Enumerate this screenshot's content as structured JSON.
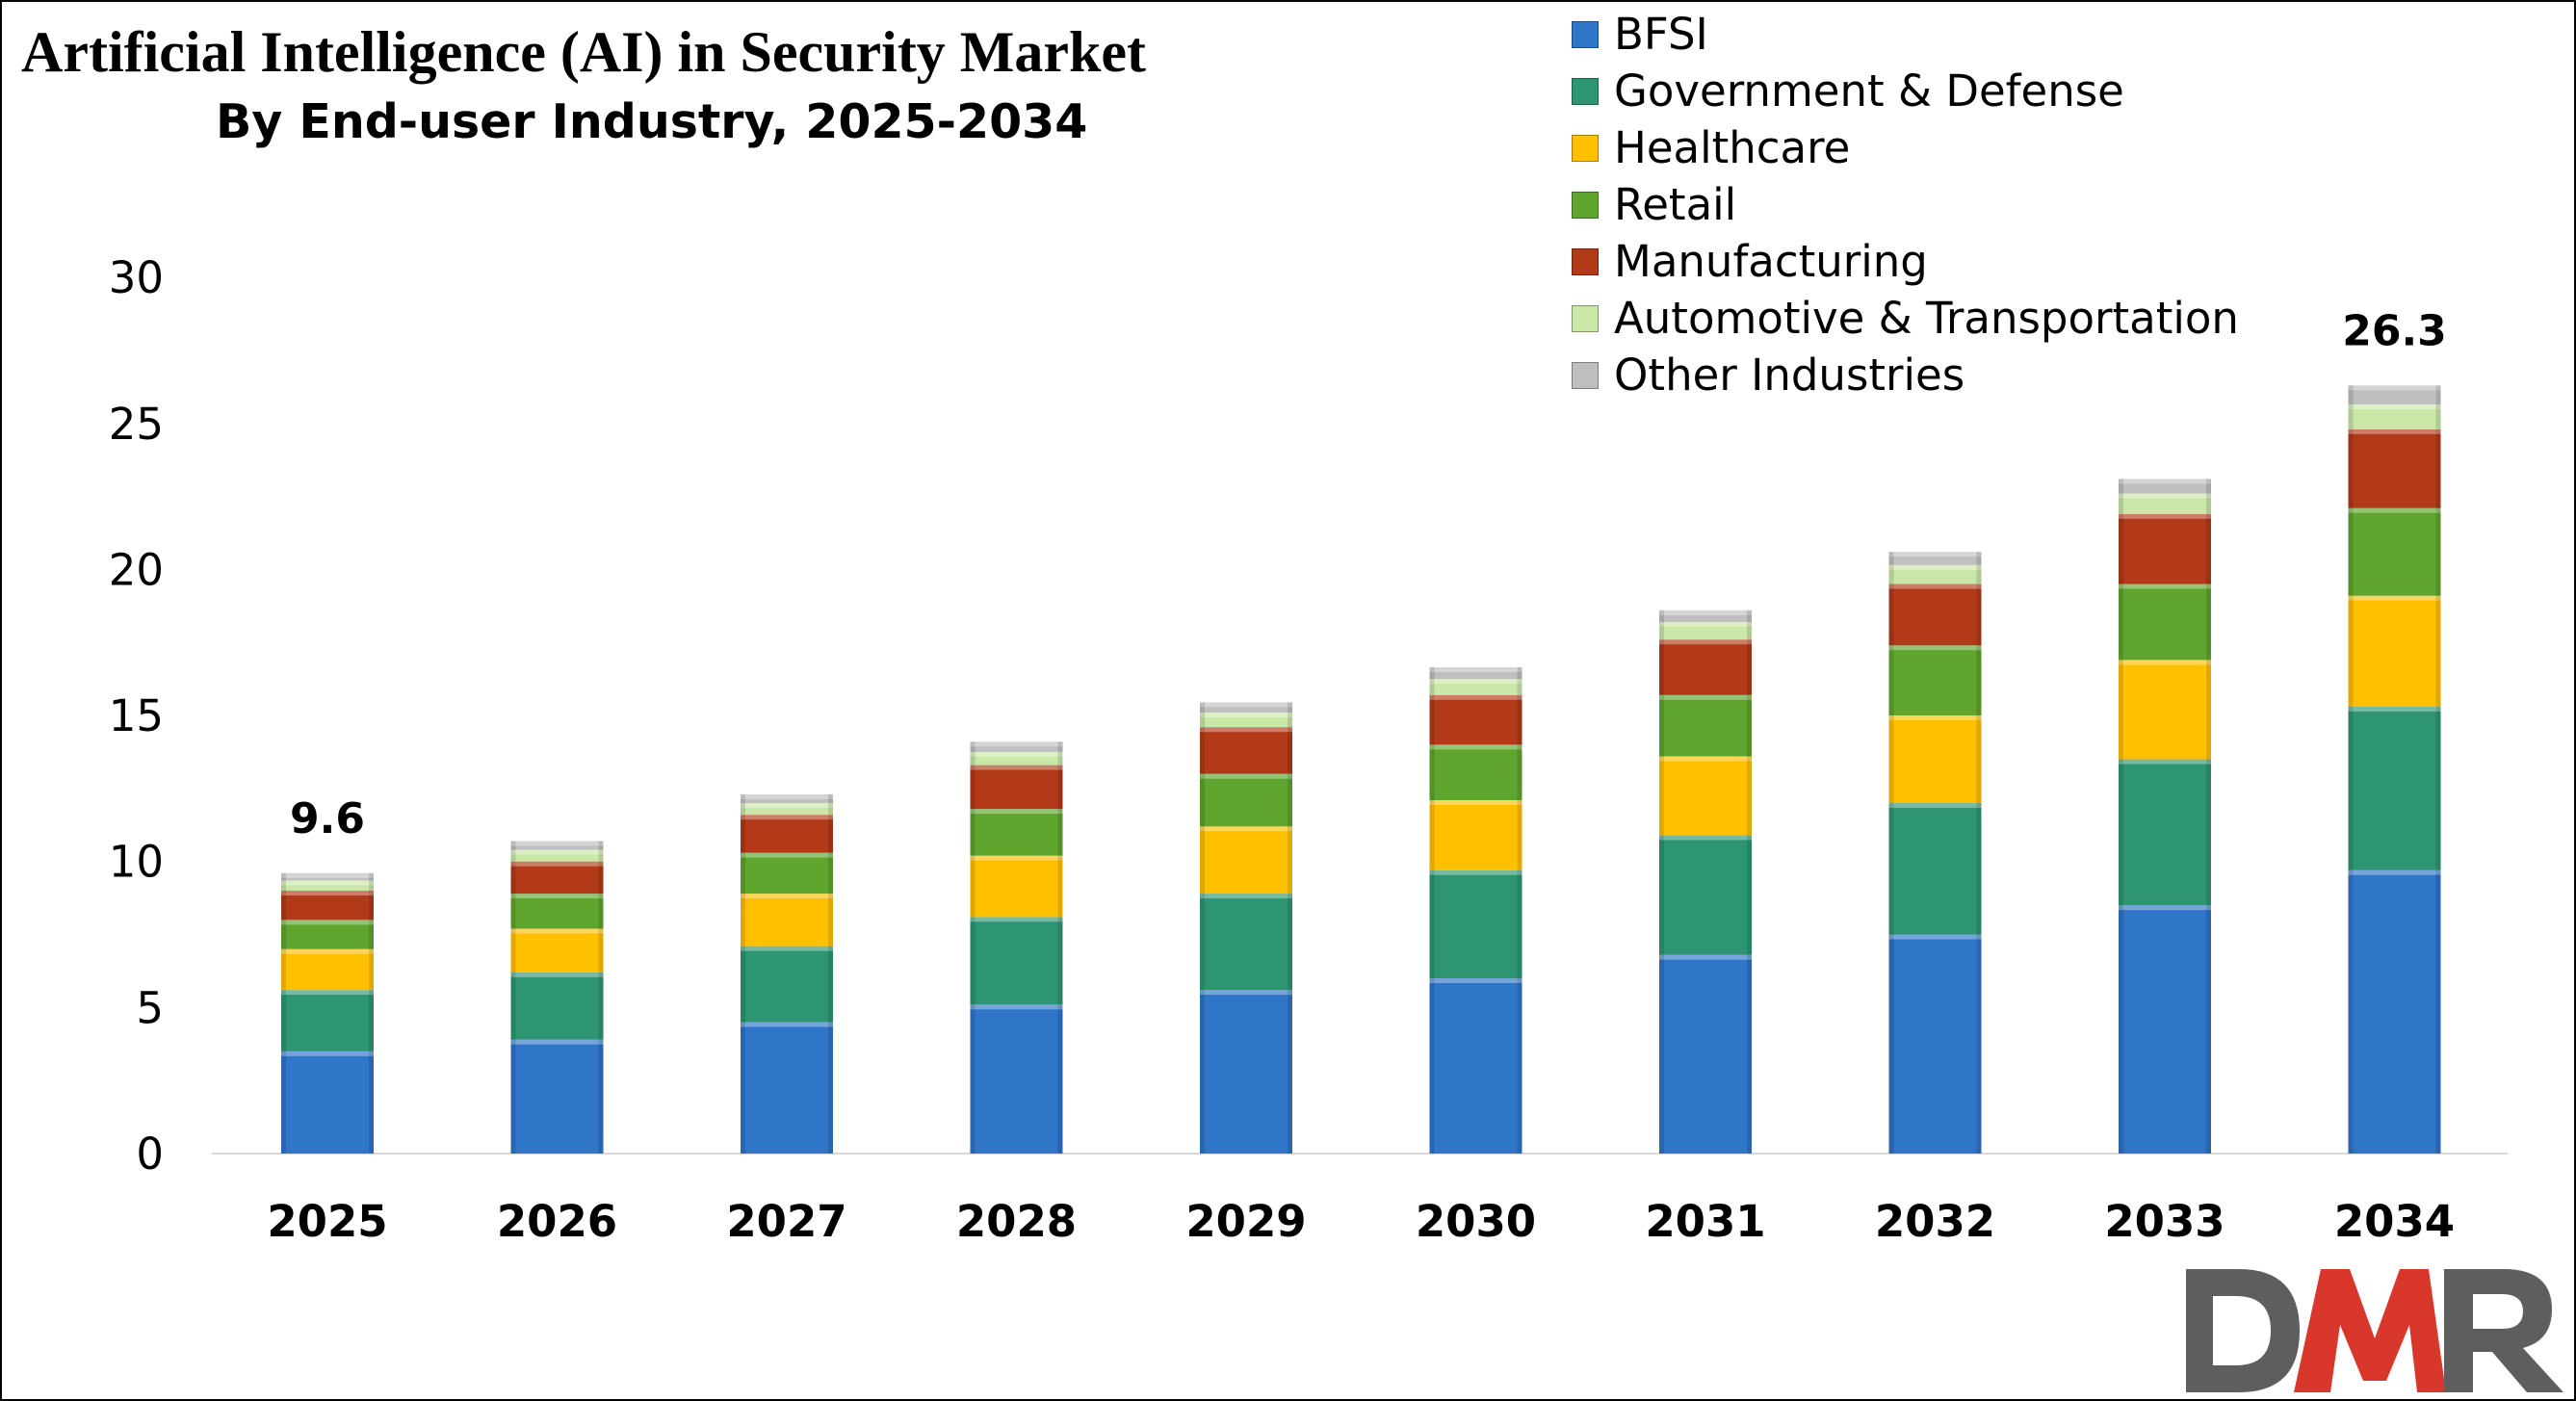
{
  "chart_data": {
    "type": "bar",
    "stacked": true,
    "title": "Artificial Intelligence (AI) in Security Market",
    "subtitle": "By End-user Industry, 2025-2034",
    "xlabel": "",
    "ylabel": "",
    "ylim": [
      0,
      30
    ],
    "yticks": [
      0,
      5,
      10,
      15,
      20,
      25,
      30
    ],
    "grid": false,
    "legend_position": "top-right",
    "categories": [
      "2025",
      "2026",
      "2027",
      "2028",
      "2029",
      "2030",
      "2031",
      "2032",
      "2033",
      "2034"
    ],
    "series": [
      {
        "name": "BFSI",
        "color": "#2F75C8",
        "values": [
          3.5,
          3.9,
          4.5,
          5.1,
          5.6,
          6.0,
          6.8,
          7.5,
          8.5,
          9.7
        ]
      },
      {
        "name": "Government & Defense",
        "color": "#2E9572",
        "values": [
          2.1,
          2.3,
          2.6,
          3.0,
          3.3,
          3.7,
          4.1,
          4.5,
          5.0,
          5.6
        ]
      },
      {
        "name": "Healthcare",
        "color": "#FFC000",
        "values": [
          1.4,
          1.5,
          1.8,
          2.1,
          2.3,
          2.4,
          2.7,
          3.0,
          3.4,
          3.8
        ]
      },
      {
        "name": "Retail",
        "color": "#5FA52E",
        "values": [
          1.0,
          1.2,
          1.4,
          1.6,
          1.8,
          1.9,
          2.1,
          2.4,
          2.6,
          3.0
        ]
      },
      {
        "name": "Manufacturing",
        "color": "#B23A18",
        "values": [
          1.0,
          1.1,
          1.3,
          1.5,
          1.6,
          1.7,
          1.9,
          2.1,
          2.4,
          2.7
        ]
      },
      {
        "name": "Automotive & Transportation",
        "color": "#C9E7A6",
        "values": [
          0.35,
          0.4,
          0.4,
          0.45,
          0.5,
          0.55,
          0.6,
          0.65,
          0.7,
          0.85
        ]
      },
      {
        "name": "Other Industries",
        "color": "#BFBFBF",
        "values": [
          0.25,
          0.3,
          0.3,
          0.35,
          0.35,
          0.4,
          0.4,
          0.45,
          0.5,
          0.65
        ]
      }
    ],
    "totals_labels": [
      {
        "category": "2025",
        "text": "9.6",
        "value": 9.6
      },
      {
        "category": "2034",
        "text": "26.3",
        "value": 26.3
      }
    ]
  },
  "watermark": {
    "text": "DMR",
    "color": "#D9372B",
    "dark_color": "#5E5E5E"
  }
}
